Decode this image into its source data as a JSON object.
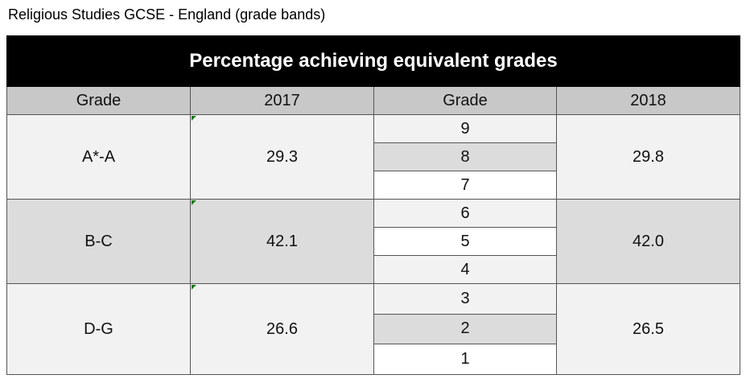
{
  "title": "Religious Studies GCSE - England (grade bands)",
  "table": {
    "caption": "Percentage achieving equivalent grades",
    "columns": [
      "Grade",
      "2017",
      "Grade",
      "2018"
    ],
    "rows": [
      {
        "band": "A*-A",
        "value_2017": "29.3",
        "grades": [
          "9",
          "8",
          "7"
        ],
        "value_2018": "29.8"
      },
      {
        "band": "B-C",
        "value_2017": "42.1",
        "grades": [
          "6",
          "5",
          "4"
        ],
        "value_2018": "42.0"
      },
      {
        "band": "D-G",
        "value_2017": "26.6",
        "grades": [
          "3",
          "2",
          "1"
        ],
        "value_2018": "26.5"
      }
    ]
  }
}
